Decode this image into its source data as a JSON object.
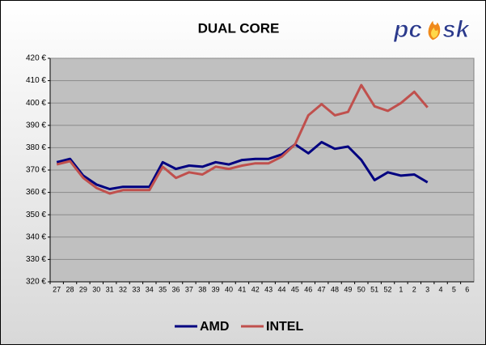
{
  "chart_data": {
    "type": "line",
    "title": "DUAL CORE",
    "logo": [
      "pc",
      "sk"
    ],
    "categories": [
      "27",
      "28",
      "29",
      "30",
      "31",
      "32",
      "33",
      "34",
      "35",
      "36",
      "37",
      "38",
      "39",
      "40",
      "41",
      "42",
      "43",
      "44",
      "45",
      "46",
      "47",
      "48",
      "49",
      "50",
      "51",
      "52",
      "1",
      "2",
      "3",
      "4",
      "5",
      "6"
    ],
    "series": [
      {
        "name": "AMD",
        "color": "#000080",
        "values": [
          373.5,
          375,
          367.5,
          363.5,
          361.5,
          362.5,
          362.5,
          362.5,
          373.5,
          370.5,
          372,
          371.5,
          373.5,
          372.5,
          374.5,
          375,
          375,
          377,
          381.5,
          377.5,
          382.5,
          379.5,
          380.5,
          374.5,
          365.5,
          369,
          367.5,
          368,
          364.5,
          null,
          null,
          null
        ]
      },
      {
        "name": "INTEL",
        "color": "#c0504d",
        "values": [
          372.5,
          374,
          366.5,
          362,
          359.5,
          361,
          361,
          361,
          371.5,
          366.5,
          369,
          368,
          371.5,
          370.5,
          372,
          373,
          373,
          376,
          381.5,
          394.5,
          399.5,
          394.5,
          396,
          408,
          398.5,
          396.5,
          400,
          405,
          398,
          null,
          null,
          null
        ]
      }
    ],
    "ylim": [
      320,
      420
    ],
    "yticks": [
      {
        "value": 320,
        "label": "320 €"
      },
      {
        "value": 330,
        "label": "330 €"
      },
      {
        "value": 340,
        "label": "340 €"
      },
      {
        "value": 350,
        "label": "350 €"
      },
      {
        "value": 360,
        "label": "360 €"
      },
      {
        "value": 370,
        "label": "370 €"
      },
      {
        "value": 380,
        "label": "380 €"
      },
      {
        "value": 390,
        "label": "390 €"
      },
      {
        "value": 400,
        "label": "400 €"
      },
      {
        "value": 410,
        "label": "410 €"
      },
      {
        "value": 420,
        "label": "420 €"
      }
    ],
    "grid": true,
    "legend": "bottom"
  }
}
